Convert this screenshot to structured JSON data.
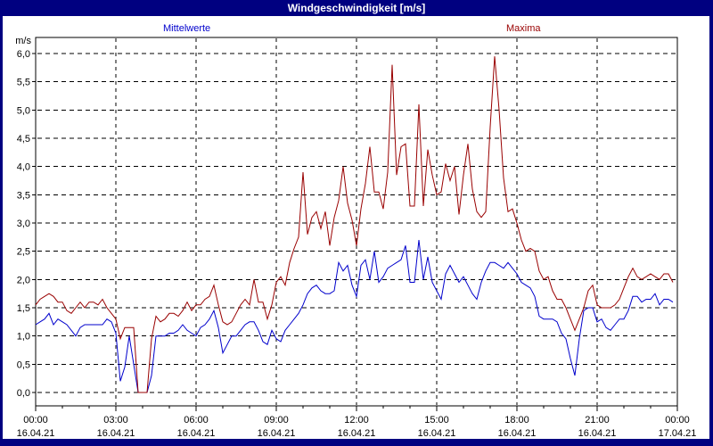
{
  "window": {
    "title": "Windgeschwindigkeit [m/s]"
  },
  "legend": {
    "mean_label": "Mittelwerte",
    "max_label": "Maxima"
  },
  "colors": {
    "frame": "#000080",
    "background": "#FFFFFF",
    "grid": "#000000",
    "mean_series": "#0000CC",
    "max_series": "#990000",
    "title_text": "#FFFFFF"
  },
  "chart_data": {
    "type": "line",
    "title": "Windgeschwindigkeit [m/s]",
    "ylabel": "m/s",
    "ylim": [
      0,
      6
    ],
    "y_tick_step": 0.5,
    "y_tick_labels": [
      "6,0",
      "5,5",
      "5,0",
      "4,5",
      "4,0",
      "3,5",
      "3,0",
      "2,5",
      "2,0",
      "1,5",
      "1,0",
      "0,5",
      "0,0"
    ],
    "y_unit_label": "m/s",
    "x_range_hours": [
      0,
      24
    ],
    "x_interval_minutes": 10,
    "grid": true,
    "legend_position": "top",
    "x_ticks": [
      {
        "time": "00:00",
        "date": "16.04.21"
      },
      {
        "time": "03:00",
        "date": "16.04.21"
      },
      {
        "time": "06:00",
        "date": "16.04.21"
      },
      {
        "time": "09:00",
        "date": "16.04.21"
      },
      {
        "time": "12:00",
        "date": "16.04.21"
      },
      {
        "time": "15:00",
        "date": "16.04.21"
      },
      {
        "time": "18:00",
        "date": "16.04.21"
      },
      {
        "time": "21:00",
        "date": "16.04.21"
      },
      {
        "time": "00:00",
        "date": "17.04.21"
      }
    ],
    "series": [
      {
        "name": "Mittelwerte",
        "color": "#0000CC",
        "values": [
          1.2,
          1.25,
          1.3,
          1.4,
          1.2,
          1.3,
          1.25,
          1.2,
          1.1,
          1.0,
          1.15,
          1.2,
          1.2,
          1.2,
          1.2,
          1.2,
          1.3,
          1.25,
          1.05,
          0.2,
          0.45,
          1.0,
          0.5,
          0.0,
          0.0,
          0.0,
          0.3,
          1.0,
          1.0,
          1.0,
          1.05,
          1.05,
          1.1,
          1.2,
          1.1,
          1.05,
          1.0,
          1.15,
          1.2,
          1.3,
          1.45,
          1.15,
          0.7,
          0.85,
          1.0,
          1.0,
          1.1,
          1.2,
          1.25,
          1.25,
          1.1,
          0.9,
          0.85,
          1.1,
          0.95,
          0.9,
          1.1,
          1.2,
          1.3,
          1.4,
          1.55,
          1.75,
          1.85,
          1.9,
          1.8,
          1.75,
          1.75,
          1.8,
          2.3,
          2.15,
          2.25,
          1.9,
          1.7,
          2.25,
          2.35,
          2.0,
          2.5,
          1.95,
          2.05,
          2.2,
          2.25,
          2.3,
          2.35,
          2.6,
          1.95,
          1.95,
          2.7,
          2.0,
          2.4,
          1.95,
          1.8,
          1.65,
          2.1,
          2.25,
          2.1,
          1.95,
          2.05,
          1.9,
          1.75,
          1.65,
          1.95,
          2.15,
          2.3,
          2.3,
          2.25,
          2.2,
          2.3,
          2.2,
          2.1,
          1.95,
          1.9,
          1.85,
          1.7,
          1.35,
          1.3,
          1.3,
          1.3,
          1.25,
          1.05,
          0.95,
          0.6,
          0.3,
          0.95,
          1.45,
          1.5,
          1.5,
          1.25,
          1.3,
          1.15,
          1.1,
          1.2,
          1.3,
          1.3,
          1.45,
          1.7,
          1.7,
          1.6,
          1.65,
          1.65,
          1.75,
          1.55,
          1.65,
          1.65,
          1.6
        ]
      },
      {
        "name": "Maxima",
        "color": "#990000",
        "values": [
          1.55,
          1.65,
          1.7,
          1.75,
          1.7,
          1.6,
          1.6,
          1.45,
          1.4,
          1.5,
          1.6,
          1.5,
          1.6,
          1.6,
          1.55,
          1.65,
          1.5,
          1.4,
          1.3,
          0.95,
          1.15,
          1.15,
          1.15,
          0.0,
          0.0,
          0.0,
          0.95,
          1.35,
          1.25,
          1.3,
          1.4,
          1.4,
          1.35,
          1.45,
          1.6,
          1.45,
          1.55,
          1.55,
          1.65,
          1.7,
          1.9,
          1.55,
          1.25,
          1.2,
          1.25,
          1.4,
          1.55,
          1.65,
          1.55,
          2.0,
          1.6,
          1.6,
          1.3,
          1.55,
          1.95,
          2.05,
          1.9,
          2.3,
          2.55,
          2.75,
          3.9,
          2.8,
          3.1,
          3.2,
          2.9,
          3.2,
          2.6,
          3.1,
          3.4,
          4.0,
          3.35,
          3.05,
          2.6,
          3.25,
          3.7,
          4.35,
          3.55,
          3.55,
          3.25,
          3.9,
          5.8,
          3.85,
          4.35,
          4.4,
          3.3,
          3.3,
          5.1,
          3.3,
          4.3,
          3.85,
          3.5,
          3.55,
          4.05,
          3.75,
          4.0,
          3.15,
          3.85,
          4.4,
          3.6,
          3.2,
          3.1,
          3.2,
          4.7,
          5.95,
          5.0,
          3.8,
          3.2,
          3.25,
          3.0,
          2.7,
          2.5,
          2.55,
          2.5,
          2.15,
          2.0,
          2.05,
          1.8,
          1.65,
          1.65,
          1.5,
          1.3,
          1.1,
          1.3,
          1.5,
          1.8,
          1.9,
          1.55,
          1.5,
          1.5,
          1.5,
          1.55,
          1.65,
          1.85,
          2.05,
          2.2,
          2.05,
          2.0,
          2.05,
          2.1,
          2.05,
          2.0,
          2.1,
          2.1,
          1.95
        ]
      }
    ]
  }
}
